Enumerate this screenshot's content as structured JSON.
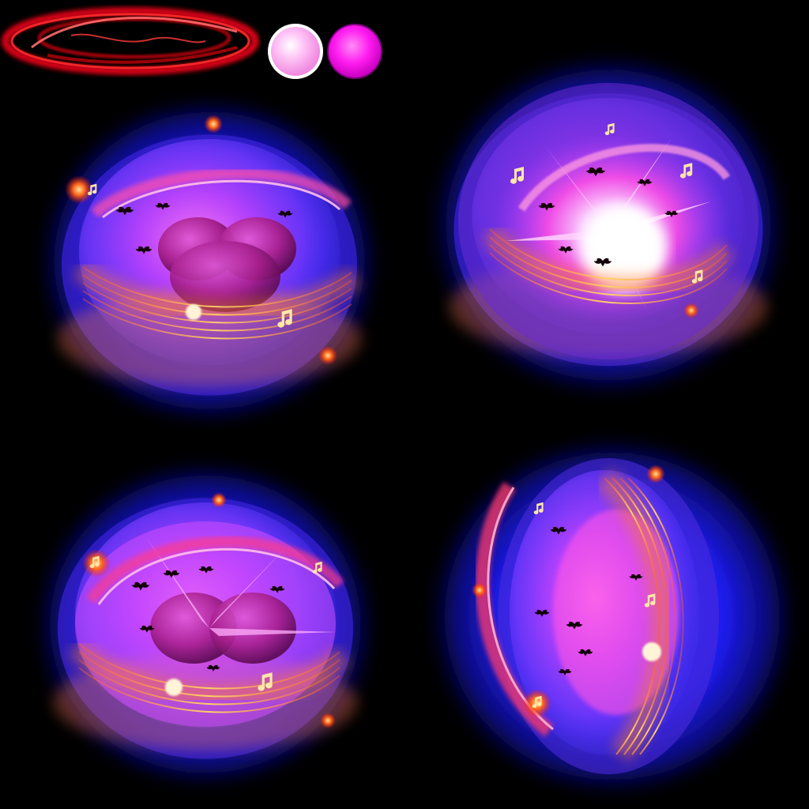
{
  "sprite_sheet": {
    "background": "#000000",
    "palette": {
      "glow_outer": "#1a1aff",
      "glow_mid": "#4b2bff",
      "bubble_core": "#b43cff",
      "magenta": "#ff2de0",
      "hot_pink": "#ff4fa8",
      "staff_orange": "#ff8a2a",
      "staff_gold": "#ffd36a",
      "ember_red": "#ff3a1a",
      "bat_black": "#140008",
      "swatch_light_pink": "#ffb8f4",
      "swatch_magenta": "#ff18f0",
      "ring_red": "#d80012"
    },
    "header": {
      "ring_effect": "red-swirl-ring",
      "swatches": [
        "light-pink-orb",
        "magenta-orb"
      ]
    },
    "frames": [
      {
        "id": "frame-1",
        "state": "idle",
        "icon": "music-orb-icon"
      },
      {
        "id": "frame-2",
        "state": "burst",
        "icon": "music-orb-icon"
      },
      {
        "id": "frame-3",
        "state": "swirl",
        "icon": "music-orb-icon"
      },
      {
        "id": "frame-4",
        "state": "rotated",
        "icon": "music-orb-icon"
      }
    ]
  }
}
